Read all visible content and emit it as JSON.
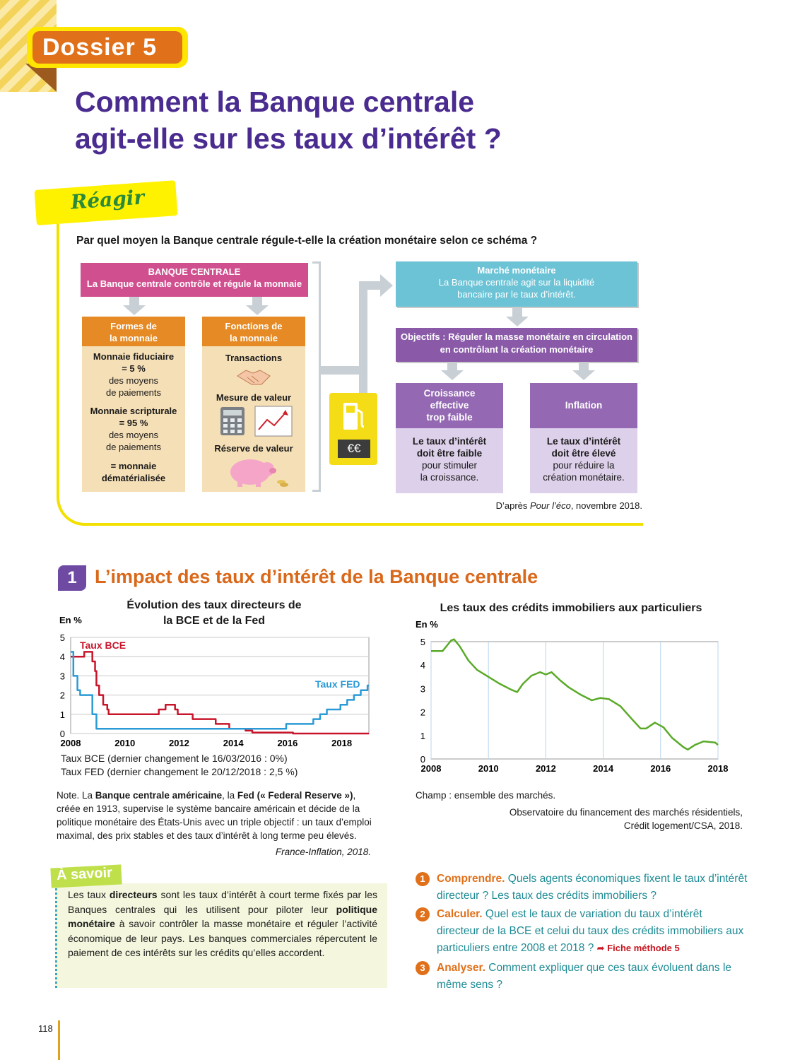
{
  "header": {
    "dossier_label": "Dossier 5",
    "title_line1": "Comment la Banque centrale",
    "title_line2": "agit-elle sur les taux d’intérêt ?"
  },
  "reagir": {
    "tag": "Réagir",
    "question": "Par quel moyen la Banque centrale régule-t-elle la création monétaire selon ce schéma ?",
    "banque_title": "BANQUE CENTRALE",
    "banque_sub": "La Banque centrale contrôle et régule la monnaie",
    "formes_title_1": "Formes de",
    "formes_title_2": "la monnaie",
    "formes": [
      "Monnaie fiduciaire",
      "= 5 %",
      "des moyens",
      "de paiements",
      "Monnaie scripturale",
      "= 95 %",
      "des moyens",
      "de paiements",
      "= monnaie",
      "dématérialisée"
    ],
    "fonctions_title_1": "Fonctions de",
    "fonctions_title_2": "la monnaie",
    "fonctions": [
      "Transactions",
      "Mesure de valeur",
      "Réserve de valeur"
    ],
    "euro_label": "€€",
    "marche_title": "Marché monétaire",
    "marche_sub": [
      "La Banque centrale agit sur la liquidité",
      "bancaire par le taux d’intérêt."
    ],
    "objectifs": [
      "Objectifs : Réguler la masse monétaire en circulation",
      "en contrôlant la création monétaire"
    ],
    "croissance_title": [
      "Croissance",
      "effective",
      "trop faible"
    ],
    "croissance_body": [
      "Le taux d’intérêt",
      "doit être faible",
      "pour stimuler",
      "la croissance."
    ],
    "inflation_title": "Inflation",
    "inflation_body": [
      "Le taux d’intérêt",
      "doit être élevé",
      "pour réduire la",
      "création monétaire."
    ],
    "source_prefix": "D’après ",
    "source_italic": "Pour l’éco",
    "source_suffix": ", novembre 2018."
  },
  "section1": {
    "num": "1",
    "title": "L’impact des taux d’intérêt de la Banque centrale",
    "chart1_title": [
      "Évolution des taux directeurs de",
      "la BCE et de la Fed"
    ],
    "chart1_footnotes": [
      "Taux BCE (dernier changement le 16/03/2016 : 0%)",
      "Taux FED (dernier changement le 20/12/2018 : 2,5 %)"
    ],
    "note": {
      "prefix": "Note. La ",
      "bold1": "Banque centrale américaine",
      "mid1": ", la ",
      "bold2": "Fed (« Federal Reserve »)",
      "rest": ", créée en 1913, supervise le système bancaire américain et décide de la politique monétaire des États-Unis avec un triple objectif : un taux d’emploi maximal, des prix stables et des taux d’intérêt à long terme peu élevés."
    },
    "note_source": "France-Inflation, 2018.",
    "chart2_title": "Les taux des crédits immobiliers aux particuliers",
    "chart2_champ": "Champ : ensemble des marchés.",
    "chart2_source": [
      "Observatoire du financement des marchés résidentiels,",
      "Crédit logement/CSA, 2018."
    ]
  },
  "asavoir": {
    "tag": "À savoir",
    "p1": "Les taux ",
    "b1": "directeurs",
    "p2": " sont les taux d’intérêt à court terme fixés par les Banques centrales qui les utilisent pour piloter leur ",
    "b2": "politique monétaire",
    "p3": " à savoir contrôler la masse monétaire et réguler l’activité économique de leur pays. Les banques commerciales répercutent le paiement de ces intérêts sur les crédits qu’elles accordent."
  },
  "questions": [
    {
      "num": "1",
      "verb": "Comprendre.",
      "text": " Quels agents économiques fixent le taux d’intérêt directeur ? Les taux des crédits immobiliers ?"
    },
    {
      "num": "2",
      "verb": "Calculer.",
      "text": " Quel est le taux de variation du taux d’intérêt directeur de la BCE et celui du taux des crédits immobiliers aux particuliers entre 2008 et 2018 ?",
      "link": "Fiche méthode 5"
    },
    {
      "num": "3",
      "verb": "Analyser.",
      "text": " Comment expliquer que ces taux évoluent dans le même sens ?"
    }
  ],
  "page_number": "118",
  "chart_data": [
    {
      "type": "line",
      "title": "Évolution des taux directeurs de la BCE et de la Fed",
      "ylabel": "En %",
      "xlim": [
        2008,
        2019
      ],
      "ylim": [
        0,
        5
      ],
      "x_ticks": [
        "2008",
        "2010",
        "2012",
        "2014",
        "2016",
        "2018"
      ],
      "y_ticks": [
        "0",
        "1",
        "2",
        "3",
        "4",
        "5"
      ],
      "series": [
        {
          "name": "Taux BCE",
          "color": "#c8142a",
          "step": true,
          "points": [
            [
              2008,
              4
            ],
            [
              2008.5,
              4.25
            ],
            [
              2008.8,
              3.75
            ],
            [
              2008.9,
              3.25
            ],
            [
              2008.95,
              2.5
            ],
            [
              2009.05,
              2
            ],
            [
              2009.2,
              1.5
            ],
            [
              2009.35,
              1.25
            ],
            [
              2009.4,
              1
            ],
            [
              2011.25,
              1.25
            ],
            [
              2011.5,
              1.5
            ],
            [
              2011.85,
              1.25
            ],
            [
              2011.95,
              1
            ],
            [
              2012.5,
              0.75
            ],
            [
              2013.35,
              0.5
            ],
            [
              2013.85,
              0.25
            ],
            [
              2014.45,
              0.15
            ],
            [
              2014.7,
              0.05
            ],
            [
              2016.2,
              0
            ],
            [
              2019,
              0
            ]
          ]
        },
        {
          "name": "Taux FED",
          "color": "#2a9ad6",
          "step": true,
          "points": [
            [
              2008,
              4.25
            ],
            [
              2008.1,
              3
            ],
            [
              2008.25,
              2.25
            ],
            [
              2008.35,
              2
            ],
            [
              2008.8,
              1
            ],
            [
              2008.95,
              0.25
            ],
            [
              2015.95,
              0.5
            ],
            [
              2016.95,
              0.75
            ],
            [
              2017.2,
              1
            ],
            [
              2017.45,
              1.25
            ],
            [
              2017.95,
              1.5
            ],
            [
              2018.2,
              1.75
            ],
            [
              2018.45,
              2
            ],
            [
              2018.7,
              2.25
            ],
            [
              2018.95,
              2.5
            ],
            [
              2019,
              2.5
            ]
          ]
        }
      ]
    },
    {
      "type": "line",
      "title": "Les taux des crédits immobiliers aux particuliers",
      "ylabel": "En %",
      "xlim": [
        2008,
        2018
      ],
      "ylim": [
        0,
        5
      ],
      "x_ticks": [
        "2008",
        "2010",
        "2012",
        "2014",
        "2016",
        "2018"
      ],
      "y_ticks": [
        "0",
        "1",
        "2",
        "3",
        "4",
        "5"
      ],
      "series": [
        {
          "name": "Taux des crédits immobiliers",
          "color": "#5aaa28",
          "points": [
            [
              2008,
              4.6
            ],
            [
              2008.4,
              4.6
            ],
            [
              2008.7,
              5.05
            ],
            [
              2008.8,
              5.1
            ],
            [
              2009,
              4.8
            ],
            [
              2009.3,
              4.2
            ],
            [
              2009.6,
              3.8
            ],
            [
              2010,
              3.5
            ],
            [
              2010.4,
              3.2
            ],
            [
              2010.8,
              2.95
            ],
            [
              2011,
              2.85
            ],
            [
              2011.2,
              3.2
            ],
            [
              2011.5,
              3.55
            ],
            [
              2011.8,
              3.7
            ],
            [
              2012,
              3.6
            ],
            [
              2012.2,
              3.7
            ],
            [
              2012.5,
              3.35
            ],
            [
              2012.8,
              3.05
            ],
            [
              2013.2,
              2.75
            ],
            [
              2013.6,
              2.5
            ],
            [
              2013.9,
              2.6
            ],
            [
              2014.2,
              2.55
            ],
            [
              2014.6,
              2.25
            ],
            [
              2015,
              1.7
            ],
            [
              2015.3,
              1.3
            ],
            [
              2015.5,
              1.3
            ],
            [
              2015.8,
              1.55
            ],
            [
              2016.1,
              1.35
            ],
            [
              2016.4,
              0.9
            ],
            [
              2016.8,
              0.5
            ],
            [
              2016.95,
              0.4
            ],
            [
              2017.2,
              0.6
            ],
            [
              2017.5,
              0.75
            ],
            [
              2017.9,
              0.7
            ],
            [
              2018,
              0.6
            ]
          ]
        }
      ]
    }
  ]
}
